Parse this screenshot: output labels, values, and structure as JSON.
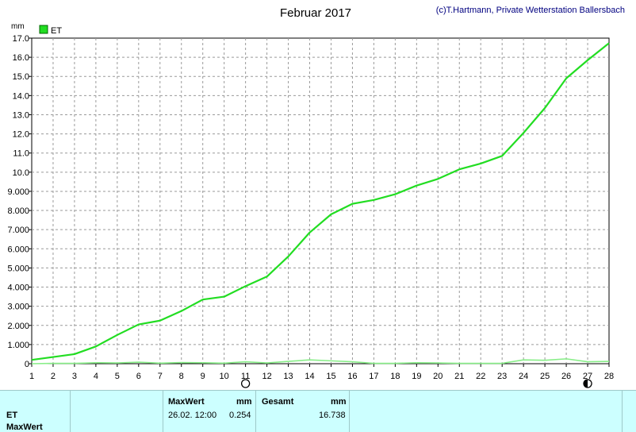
{
  "title": "Februar 2017",
  "copyright": "(c)T.Hartmann, Private Wetterstation Ballersbach",
  "colors": {
    "background": "#ffffff",
    "plot_bg": "#ffffff",
    "grid": "#9a9a9a",
    "series_main": "#22dd22",
    "series_daily": "#88ee88",
    "panel_bg": "#ccffff"
  },
  "chart_data": {
    "type": "line",
    "title": "Februar 2017",
    "xlabel": "",
    "ylabel": "mm",
    "x": [
      1,
      2,
      3,
      4,
      5,
      6,
      7,
      8,
      9,
      10,
      11,
      12,
      13,
      14,
      15,
      16,
      17,
      18,
      19,
      20,
      21,
      22,
      23,
      24,
      25,
      26,
      27,
      28
    ],
    "xlim": [
      1,
      28
    ],
    "ylim": [
      0,
      17
    ],
    "y_ticks": [
      {
        "v": 17,
        "label": "17.0"
      },
      {
        "v": 16,
        "label": "16.0"
      },
      {
        "v": 15,
        "label": "15.0"
      },
      {
        "v": 14,
        "label": "14.0"
      },
      {
        "v": 13,
        "label": "13.0"
      },
      {
        "v": 12,
        "label": "12.0"
      },
      {
        "v": 11,
        "label": "11.0"
      },
      {
        "v": 10,
        "label": "10.0"
      },
      {
        "v": 9,
        "label": "9.000"
      },
      {
        "v": 8,
        "label": "8.000"
      },
      {
        "v": 7,
        "label": "7.000"
      },
      {
        "v": 6,
        "label": "6.000"
      },
      {
        "v": 5,
        "label": "5.000"
      },
      {
        "v": 4,
        "label": "4.000"
      },
      {
        "v": 3,
        "label": "3.000"
      },
      {
        "v": 2,
        "label": "2.000"
      },
      {
        "v": 1,
        "label": "1.000"
      },
      {
        "v": 0,
        "label": "0"
      }
    ],
    "grid": true,
    "legend_position": "top-left",
    "series": [
      {
        "name": "ET",
        "values": [
          0.2,
          0.35,
          0.5,
          0.9,
          1.5,
          2.05,
          2.25,
          2.75,
          3.35,
          3.5,
          4.05,
          4.55,
          5.6,
          6.85,
          7.8,
          8.35,
          8.55,
          8.85,
          9.3,
          9.65,
          10.15,
          10.45,
          10.85,
          12.05,
          13.35,
          14.9,
          15.85,
          16.738
        ]
      },
      {
        "values": [
          0.0,
          0.02,
          0.02,
          0.05,
          0.04,
          0.08,
          0.03,
          0.06,
          0.05,
          0.03,
          0.1,
          0.04,
          0.12,
          0.2,
          0.15,
          0.1,
          0.02,
          0.02,
          0.05,
          0.04,
          0.02,
          0.02,
          0.02,
          0.2,
          0.18,
          0.254,
          0.1,
          0.12
        ]
      }
    ]
  },
  "markers": {
    "open_circle_x": 11,
    "filled_circle_x": 27
  },
  "panel": {
    "row_label_et": "ET",
    "row_label_maxwert": "MaxWert",
    "maxwert_header": "MaxWert",
    "unit_1": "mm",
    "gesamt_header": "Gesamt",
    "unit_2": "mm",
    "max_time": "26.02.  12:00",
    "max_value": "0.254",
    "total_value": "16.738"
  }
}
